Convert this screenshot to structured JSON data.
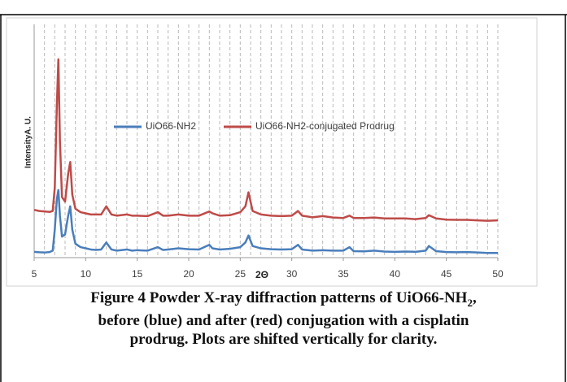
{
  "chart_data": {
    "type": "line",
    "xlabel": "2Θ",
    "ylabel": "IntensityA. U.",
    "xlim": [
      5,
      50
    ],
    "xticks": [
      5,
      10,
      15,
      20,
      25,
      30,
      35,
      40,
      45,
      50
    ],
    "xgrid": [
      5,
      6,
      7,
      8,
      9,
      10,
      11,
      12,
      13,
      14,
      15,
      16,
      17,
      18,
      19,
      20,
      21,
      22,
      23,
      24,
      25,
      26,
      27,
      28,
      29,
      30,
      31,
      32,
      33,
      34,
      35,
      36,
      37,
      38,
      39,
      40,
      41,
      42,
      43,
      44,
      45,
      46,
      47,
      48,
      49,
      50
    ],
    "ylim": [
      0,
      100
    ],
    "grid": true,
    "legend": "inside",
    "x": [
      5,
      5.5,
      6,
      6.5,
      6.8,
      7.0,
      7.2,
      7.35,
      7.5,
      7.7,
      8.0,
      8.3,
      8.5,
      8.7,
      9.0,
      9.5,
      10,
      10.5,
      11,
      11.5,
      12,
      12.5,
      13,
      14,
      14.5,
      15,
      16,
      17,
      17.5,
      18,
      19,
      20,
      21,
      22,
      22.3,
      23,
      24,
      25,
      25.5,
      25.8,
      26.2,
      27,
      28,
      29,
      30,
      30.6,
      31,
      32,
      33,
      34,
      35,
      35.6,
      36,
      37,
      38,
      39,
      40,
      41,
      42,
      43,
      43.3,
      44,
      45,
      46,
      47,
      48,
      49,
      50
    ],
    "series": [
      {
        "name": "UiO66-NH2",
        "color": "#4a7ebb",
        "values": [
          2.5,
          2.3,
          2.2,
          2.4,
          3,
          12,
          25,
          29,
          18,
          9,
          10,
          18,
          22,
          12,
          6,
          4.5,
          4,
          3.5,
          3.3,
          3.5,
          6.5,
          3.5,
          3,
          3.5,
          3,
          3.2,
          3,
          4.5,
          3.3,
          3.5,
          4,
          3.6,
          3.5,
          5.5,
          4,
          3.5,
          3.8,
          4.5,
          6.5,
          9.5,
          5,
          4,
          3.6,
          3.5,
          3.6,
          5.5,
          3.5,
          3,
          3.2,
          3,
          3,
          4.5,
          2.8,
          2.7,
          3,
          2.6,
          2.5,
          2.6,
          2.5,
          3,
          5,
          2.8,
          2.4,
          2.3,
          2.4,
          2.2,
          2,
          2
        ]
      },
      {
        "name": "UiO66-NH2-conjugated Prodrug",
        "color": "#be4b48",
        "values": [
          20.5,
          20,
          19.8,
          19.6,
          20,
          30,
          65,
          85,
          50,
          26,
          24,
          36,
          41,
          27,
          21,
          19.5,
          19,
          18.5,
          18.5,
          18.5,
          22,
          18.5,
          18,
          18.5,
          18,
          18,
          17.8,
          19.5,
          18,
          18,
          18.5,
          18,
          18,
          19.8,
          19,
          18,
          18.2,
          19.5,
          22,
          28,
          20,
          18.5,
          18,
          17.8,
          18,
          20,
          18,
          17.3,
          17.8,
          17.2,
          17,
          18,
          17,
          17,
          17.2,
          16.8,
          16.8,
          16.8,
          16.5,
          17,
          18.2,
          16.8,
          16.3,
          16.2,
          16.2,
          16,
          15.8,
          16
        ]
      }
    ]
  },
  "caption": {
    "line1": [
      "Figure 4 Powder X-ray diffraction patterns of UiO66-NH",
      "2",
      ","
    ],
    "line2": "before (blue) and after (red) conjugation with a cisplatin",
    "line3": "prodrug. Plots are shifted vertically for clarity."
  }
}
